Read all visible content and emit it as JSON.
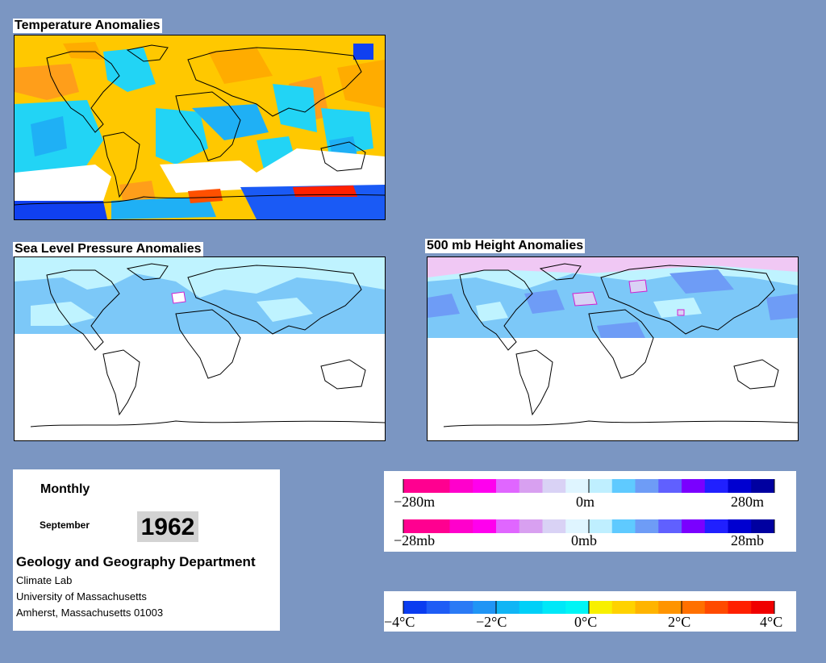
{
  "panels": {
    "temperature": {
      "title": "Temperature Anomalies"
    },
    "slp": {
      "title": "Sea Level Pressure Anomalies"
    },
    "height500": {
      "title": "500 mb Height Anomalies"
    }
  },
  "info": {
    "period": "Monthly",
    "month": "September",
    "year": "1962",
    "department": "Geology and Geography Department",
    "lab": "Climate Lab",
    "university": "University of Massachusetts",
    "address": "Amherst, Massachusetts 01003"
  },
  "legends": {
    "height": {
      "left": "−280m",
      "center": "0m",
      "right": "280m",
      "colors": [
        "#ff0090",
        "#ff0090",
        "#ff00cc",
        "#ff00ee",
        "#e066ff",
        "#d8a0f0",
        "#d9d2f5",
        "#dff5ff",
        "#bfefff",
        "#5fcaff",
        "#6e9cf6",
        "#6060ff",
        "#7a00ff",
        "#2020ff",
        "#0000d0",
        "#0000a0"
      ]
    },
    "pressure": {
      "left": "−28mb",
      "center": "0mb",
      "right": "28mb",
      "colors": [
        "#ff0090",
        "#ff0090",
        "#ff00cc",
        "#ff00ee",
        "#e066ff",
        "#d8a0f0",
        "#d9d2f5",
        "#dff5ff",
        "#bfefff",
        "#5fcaff",
        "#6e9cf6",
        "#6060ff",
        "#7a00ff",
        "#2020ff",
        "#0000d0",
        "#0000a0"
      ]
    },
    "temperature": {
      "labels": [
        "−4°C",
        "−2°C",
        "0°C",
        "2°C",
        "4°C"
      ],
      "colors": [
        "#0a3cf0",
        "#1e5cf5",
        "#2a7af5",
        "#2095f5",
        "#10b5f5",
        "#00d0f8",
        "#00e8f8",
        "#00f5f5",
        "#f8f000",
        "#ffd200",
        "#ffb400",
        "#ff9400",
        "#ff7000",
        "#ff4a00",
        "#ff2000",
        "#f00000"
      ]
    }
  }
}
